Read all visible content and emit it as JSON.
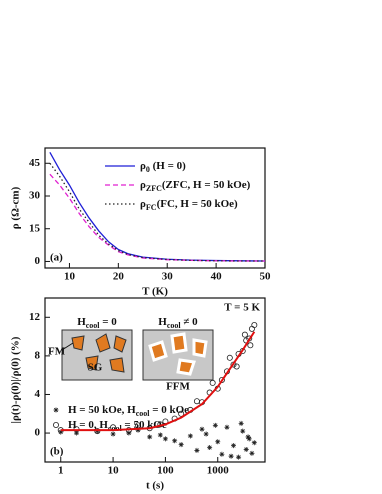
{
  "chart_data": [
    {
      "type": "line",
      "panel_label": "(a)",
      "xlabel": "T (K)",
      "ylabel": "ρ (Ω-cm)",
      "xlim": [
        5,
        50
      ],
      "ylim": [
        -3,
        52
      ],
      "xticks": [
        10,
        20,
        30,
        40,
        50
      ],
      "yticks": [
        0,
        15,
        30,
        45
      ],
      "x": [
        6,
        8,
        10,
        12,
        14,
        16,
        18,
        20,
        22,
        25,
        30,
        35,
        40,
        45,
        50
      ],
      "series": [
        {
          "name": [
            "ρ",
            "0",
            "   (H = 0)"
          ],
          "color": "#1f1fd6",
          "dash": "solid",
          "values": [
            50,
            42,
            35,
            27,
            20,
            14,
            9,
            5.5,
            3.5,
            2,
            1,
            0.6,
            0.4,
            0.3,
            0.2
          ]
        },
        {
          "name": [
            "ρ",
            "ZFC",
            "(ZFC, H = 50 kOe)"
          ],
          "color": "#e020d0",
          "dash": "dashed",
          "values": [
            40,
            35,
            29,
            22,
            16,
            11,
            7.5,
            4.5,
            3,
            1.6,
            0.8,
            0.5,
            0.3,
            0.2,
            0.2
          ]
        },
        {
          "name": [
            "ρ",
            "FC",
            "(FC, H = 50 kOe)"
          ],
          "color": "#222222",
          "dash": "dotted",
          "values": [
            45,
            39,
            32,
            24,
            18,
            12,
            8,
            5,
            3.2,
            1.8,
            0.9,
            0.5,
            0.3,
            0.2,
            0.2
          ]
        }
      ]
    },
    {
      "type": "scatter",
      "panel_label": "(b)",
      "title": "T = 5 K",
      "xlabel": "t (s)",
      "ylabel": "|ρ(t)-ρ(0)|/ρ(0) (%)",
      "xscale": "log",
      "xlim": [
        0.5,
        8000
      ],
      "ylim": [
        -3,
        14
      ],
      "xticks": [
        1,
        10,
        100,
        1000
      ],
      "yticks": [
        0,
        4,
        8,
        12
      ],
      "insets": [
        {
          "title": [
            "H",
            "cool",
            " = 0"
          ],
          "labels": [
            "FM",
            "SG"
          ]
        },
        {
          "title": [
            "H",
            "cool",
            " ≠ 0"
          ],
          "labels": [
            "FFM"
          ]
        }
      ],
      "series": [
        {
          "name": [
            "H = 50 kOe, H",
            "cool",
            " = 0 kOe"
          ],
          "marker": "star",
          "color": "#222222",
          "x": [
            1,
            2,
            5,
            10,
            20,
            30,
            50,
            80,
            100,
            150,
            200,
            300,
            400,
            500,
            700,
            1000,
            1200,
            1500,
            2000,
            2500,
            3000,
            3500,
            4000,
            4500,
            5000,
            600,
            900,
            1800,
            2800,
            3800
          ],
          "values": [
            0.1,
            0,
            0.2,
            -0.1,
            0,
            0.3,
            -0.4,
            -0.2,
            -0.6,
            -0.8,
            -1.2,
            -0.3,
            -1.8,
            0.4,
            -1.5,
            -0.9,
            -2.2,
            0.6,
            -1.3,
            -2.5,
            0.2,
            -1.7,
            -0.6,
            -2.1,
            -1,
            -0.1,
            0.8,
            -2.4,
            1,
            -0.4
          ]
        },
        {
          "name": [
            "H = 0, H",
            "cool",
            " = 50 kOe"
          ],
          "marker": "circle",
          "color": "#222222",
          "x": [
            1,
            2,
            5,
            10,
            20,
            30,
            50,
            80,
            100,
            150,
            200,
            300,
            400,
            500,
            700,
            1000,
            1200,
            1500,
            2000,
            2500,
            3000,
            3500,
            4000,
            4500,
            5000,
            800,
            1700,
            2300,
            3300,
            4200
          ],
          "values": [
            0.3,
            0.4,
            0.2,
            0.6,
            0.3,
            0.8,
            0.5,
            0.9,
            1.2,
            1.5,
            2,
            2.4,
            3.3,
            3.2,
            4.2,
            4.6,
            5.5,
            6.4,
            7.1,
            8.2,
            8.5,
            9.6,
            9.8,
            10.8,
            11.2,
            5.2,
            7.8,
            6.9,
            10.2,
            9.1
          ]
        },
        {
          "marker": "none",
          "color": "#e01010",
          "x": [
            1,
            10,
            50,
            100,
            200,
            500,
            1000,
            2000,
            3000,
            5000
          ],
          "values": [
            0.3,
            0.3,
            0.5,
            0.9,
            1.6,
            3,
            4.8,
            7.2,
            8.6,
            10.5
          ]
        }
      ]
    }
  ]
}
